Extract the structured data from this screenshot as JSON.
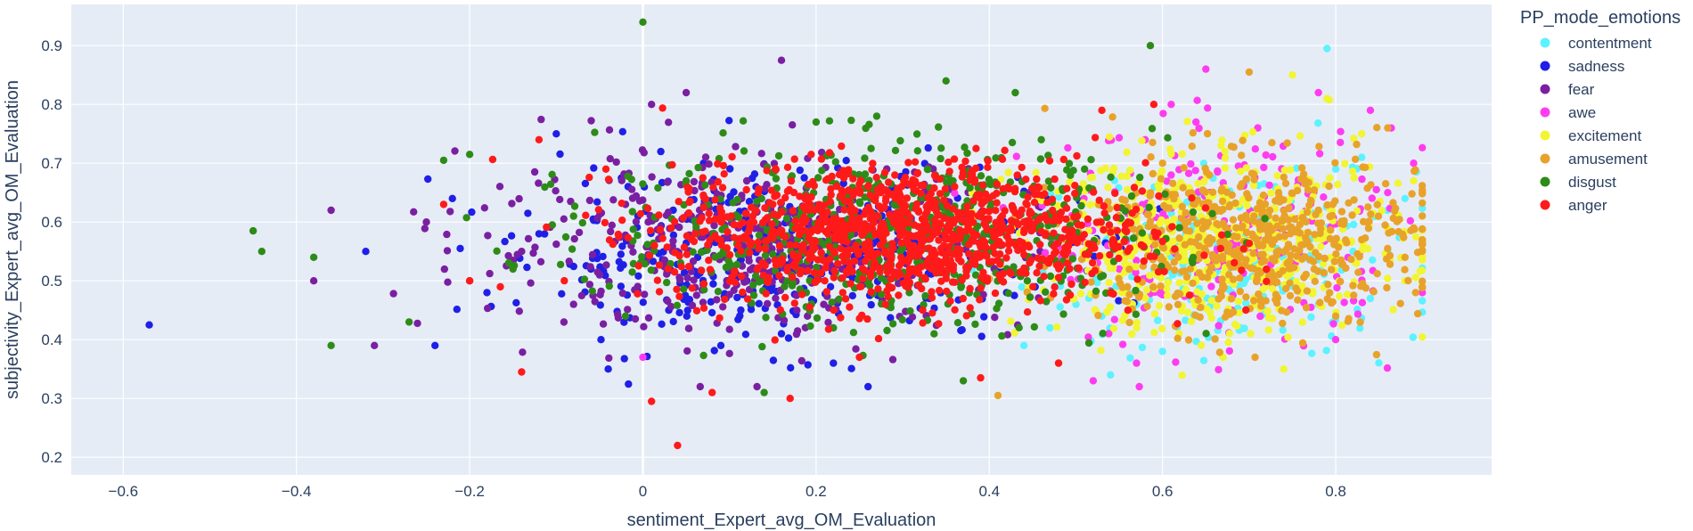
{
  "chart_data": {
    "type": "scatter",
    "xlabel": "sentiment_Expert_avg_OM_Evaluation",
    "ylabel": "subjectivity_Expert_avg_OM_Evaluation",
    "xlim": [
      -0.66,
      0.98
    ],
    "ylim": [
      0.17,
      0.97
    ],
    "x_ticks": [
      -0.6,
      -0.4,
      -0.2,
      0,
      0.2,
      0.4,
      0.6,
      0.8
    ],
    "x_tick_labels": [
      "−0.6",
      "−0.4",
      "−0.2",
      "0",
      "0.2",
      "0.4",
      "0.6",
      "0.8"
    ],
    "y_ticks": [
      0.2,
      0.3,
      0.4,
      0.5,
      0.6,
      0.7,
      0.8,
      0.9
    ],
    "y_tick_labels": [
      "0.2",
      "0.3",
      "0.4",
      "0.5",
      "0.6",
      "0.7",
      "0.8",
      "0.9"
    ],
    "grid": true,
    "plot_background": "#e5ecf6",
    "legend": {
      "title": "PP_mode_emotions",
      "position": "right"
    },
    "series": [
      {
        "name": "contentment",
        "color": "#5cf2ff",
        "points": [
          [
            0.79,
            0.895
          ],
          [
            0.64,
            0.44
          ],
          [
            0.6,
            0.38
          ],
          [
            0.47,
            0.42
          ],
          [
            0.86,
            0.62
          ],
          [
            0.77,
            0.57
          ],
          [
            0.66,
            0.51
          ],
          [
            0.73,
            0.66
          ],
          [
            0.57,
            0.46
          ],
          [
            0.54,
            0.34
          ],
          [
            0.68,
            0.48
          ],
          [
            0.82,
            0.55
          ],
          [
            0.71,
            0.53
          ],
          [
            0.84,
            0.47
          ],
          [
            0.44,
            0.39
          ],
          [
            0.62,
            0.6
          ],
          [
            0.75,
            0.5
          ],
          [
            0.88,
            0.64
          ],
          [
            0.69,
            0.42
          ],
          [
            0.8,
            0.69
          ],
          [
            0.53,
            0.44
          ],
          [
            0.78,
            0.46
          ],
          [
            0.65,
            0.57
          ],
          [
            0.59,
            0.52
          ],
          [
            0.86,
            0.55
          ],
          [
            0.72,
            0.59
          ],
          [
            0.5,
            0.46
          ],
          [
            0.83,
            0.71
          ]
        ],
        "cloud": {
          "n": 180,
          "x_mean": 0.67,
          "x_sd": 0.11,
          "y_mean": 0.53,
          "y_sd": 0.08,
          "x_range": [
            0.38,
            0.9
          ],
          "y_range": [
            0.33,
            0.9
          ]
        }
      },
      {
        "name": "sadness",
        "color": "#1f1fe6",
        "points": [
          [
            -0.57,
            0.425
          ],
          [
            -0.24,
            0.39
          ],
          [
            -0.32,
            0.55
          ],
          [
            -0.22,
            0.64
          ],
          [
            -0.1,
            0.75
          ],
          [
            0.16,
            0.41
          ],
          [
            0.26,
            0.32
          ],
          [
            -0.04,
            0.35
          ],
          [
            0.03,
            0.45
          ],
          [
            0.12,
            0.5
          ],
          [
            -0.18,
            0.48
          ],
          [
            0.22,
            0.36
          ],
          [
            0.07,
            0.7
          ],
          [
            -0.12,
            0.58
          ],
          [
            0.18,
            0.62
          ],
          [
            0.09,
            0.39
          ],
          [
            -0.06,
            0.52
          ],
          [
            0.3,
            0.5
          ],
          [
            0.14,
            0.56
          ],
          [
            0.42,
            0.48
          ]
        ],
        "cloud": {
          "n": 380,
          "x_mean": 0.16,
          "x_sd": 0.15,
          "y_mean": 0.55,
          "y_sd": 0.075,
          "x_range": [
            -0.6,
            0.6
          ],
          "y_range": [
            0.3,
            0.84
          ]
        }
      },
      {
        "name": "fear",
        "color": "#7b1fa2",
        "points": [
          [
            0.16,
            0.875
          ],
          [
            0.01,
            0.8
          ],
          [
            -0.36,
            0.62
          ],
          [
            -0.38,
            0.5
          ],
          [
            -0.31,
            0.39
          ],
          [
            -0.25,
            0.6
          ],
          [
            -0.2,
            0.5
          ],
          [
            0.05,
            0.82
          ],
          [
            -0.08,
            0.46
          ],
          [
            0.08,
            0.58
          ],
          [
            -0.14,
            0.55
          ],
          [
            0.23,
            0.52
          ],
          [
            -0.02,
            0.63
          ],
          [
            0.12,
            0.67
          ],
          [
            0.31,
            0.6
          ],
          [
            0.19,
            0.44
          ],
          [
            -0.05,
            0.51
          ]
        ],
        "cloud": {
          "n": 420,
          "x_mean": 0.12,
          "x_sd": 0.16,
          "y_mean": 0.56,
          "y_sd": 0.075,
          "x_range": [
            -0.5,
            0.6
          ],
          "y_range": [
            0.32,
            0.88
          ]
        }
      },
      {
        "name": "awe",
        "color": "#ff3cf0",
        "points": [
          [
            0.52,
            0.33
          ],
          [
            0.57,
            0.36
          ],
          [
            0.61,
            0.8
          ],
          [
            0.65,
            0.86
          ],
          [
            0.84,
            0.79
          ],
          [
            0.89,
            0.7
          ],
          [
            0.78,
            0.82
          ],
          [
            0.74,
            0.62
          ],
          [
            0.68,
            0.45
          ],
          [
            0.8,
            0.4
          ],
          [
            0.58,
            0.74
          ],
          [
            0.0,
            0.37
          ],
          [
            0.63,
            0.56
          ],
          [
            0.71,
            0.76
          ],
          [
            0.55,
            0.52
          ],
          [
            0.86,
            0.65
          ]
        ],
        "cloud": {
          "n": 230,
          "x_mean": 0.66,
          "x_sd": 0.11,
          "y_mean": 0.57,
          "y_sd": 0.09,
          "x_range": [
            0.36,
            0.9
          ],
          "y_range": [
            0.32,
            0.86
          ]
        }
      },
      {
        "name": "excitement",
        "color": "#f2f531",
        "points": [
          [
            0.75,
            0.85
          ],
          [
            0.79,
            0.81
          ],
          [
            0.74,
            0.35
          ],
          [
            0.89,
            0.67
          ],
          [
            0.88,
            0.5
          ],
          [
            0.57,
            0.42
          ],
          [
            0.67,
            0.37
          ],
          [
            0.83,
            0.75
          ],
          [
            0.62,
            0.63
          ],
          [
            0.7,
            0.58
          ],
          [
            0.76,
            0.48
          ],
          [
            0.52,
            0.53
          ]
        ],
        "cloud": {
          "n": 520,
          "x_mean": 0.66,
          "x_sd": 0.11,
          "y_mean": 0.56,
          "y_sd": 0.075,
          "x_range": [
            0.38,
            0.9
          ],
          "y_range": [
            0.33,
            0.86
          ]
        }
      },
      {
        "name": "amusement",
        "color": "#e8a22a",
        "points": [
          [
            0.7,
            0.855
          ],
          [
            0.41,
            0.305
          ],
          [
            0.89,
            0.59
          ],
          [
            0.88,
            0.54
          ],
          [
            0.86,
            0.76
          ],
          [
            0.8,
            0.44
          ],
          [
            0.48,
            0.36
          ],
          [
            0.6,
            0.7
          ],
          [
            0.69,
            0.66
          ],
          [
            0.78,
            0.62
          ],
          [
            0.73,
            0.5
          ],
          [
            0.65,
            0.55
          ],
          [
            0.83,
            0.57
          ],
          [
            0.57,
            0.48
          ]
        ],
        "cloud": {
          "n": 560,
          "x_mean": 0.7,
          "x_sd": 0.1,
          "y_mean": 0.57,
          "y_sd": 0.07,
          "x_range": [
            0.4,
            0.9
          ],
          "y_range": [
            0.3,
            0.86
          ]
        }
      },
      {
        "name": "disgust",
        "color": "#2e8b17",
        "points": [
          [
            -0.45,
            0.585
          ],
          [
            -0.44,
            0.55
          ],
          [
            -0.36,
            0.39
          ],
          [
            -0.38,
            0.54
          ],
          [
            -0.23,
            0.705
          ],
          [
            -0.2,
            0.715
          ],
          [
            0.0,
            0.94
          ],
          [
            -0.27,
            0.43
          ],
          [
            0.35,
            0.84
          ],
          [
            0.14,
            0.31
          ],
          [
            0.37,
            0.33
          ],
          [
            -0.15,
            0.52
          ],
          [
            -0.08,
            0.61
          ],
          [
            0.05,
            0.67
          ],
          [
            0.2,
            0.77
          ],
          [
            0.27,
            0.78
          ],
          [
            0.43,
            0.82
          ],
          [
            -0.02,
            0.44
          ],
          [
            0.1,
            0.53
          ],
          [
            0.29,
            0.63
          ],
          [
            0.46,
            0.74
          ],
          [
            0.51,
            0.69
          ],
          [
            0.22,
            0.42
          ],
          [
            0.39,
            0.5
          ]
        ],
        "cloud": {
          "n": 600,
          "x_mean": 0.28,
          "x_sd": 0.16,
          "y_mean": 0.58,
          "y_sd": 0.075,
          "x_range": [
            -0.5,
            0.8
          ],
          "y_range": [
            0.3,
            0.9
          ]
        }
      },
      {
        "name": "anger",
        "color": "#ff1a1a",
        "points": [
          [
            0.04,
            0.22
          ],
          [
            0.01,
            0.295
          ],
          [
            0.08,
            0.31
          ],
          [
            0.17,
            0.3
          ],
          [
            -0.14,
            0.345
          ],
          [
            -0.12,
            0.74
          ],
          [
            0.39,
            0.335
          ],
          [
            0.48,
            0.36
          ],
          [
            -0.23,
            0.63
          ],
          [
            -0.2,
            0.5
          ],
          [
            0.25,
            0.37
          ],
          [
            0.53,
            0.79
          ],
          [
            0.59,
            0.8
          ],
          [
            0.56,
            0.45
          ],
          [
            0.44,
            0.6
          ],
          [
            0.32,
            0.55
          ],
          [
            0.15,
            0.63
          ],
          [
            0.21,
            0.5
          ],
          [
            0.06,
            0.58
          ],
          [
            0.36,
            0.66
          ],
          [
            0.28,
            0.46
          ],
          [
            0.49,
            0.64
          ]
        ],
        "cloud": {
          "n": 1100,
          "x_mean": 0.3,
          "x_sd": 0.14,
          "y_mean": 0.58,
          "y_sd": 0.06,
          "x_range": [
            -0.28,
            0.72
          ],
          "y_range": [
            0.3,
            0.8
          ]
        }
      }
    ]
  }
}
